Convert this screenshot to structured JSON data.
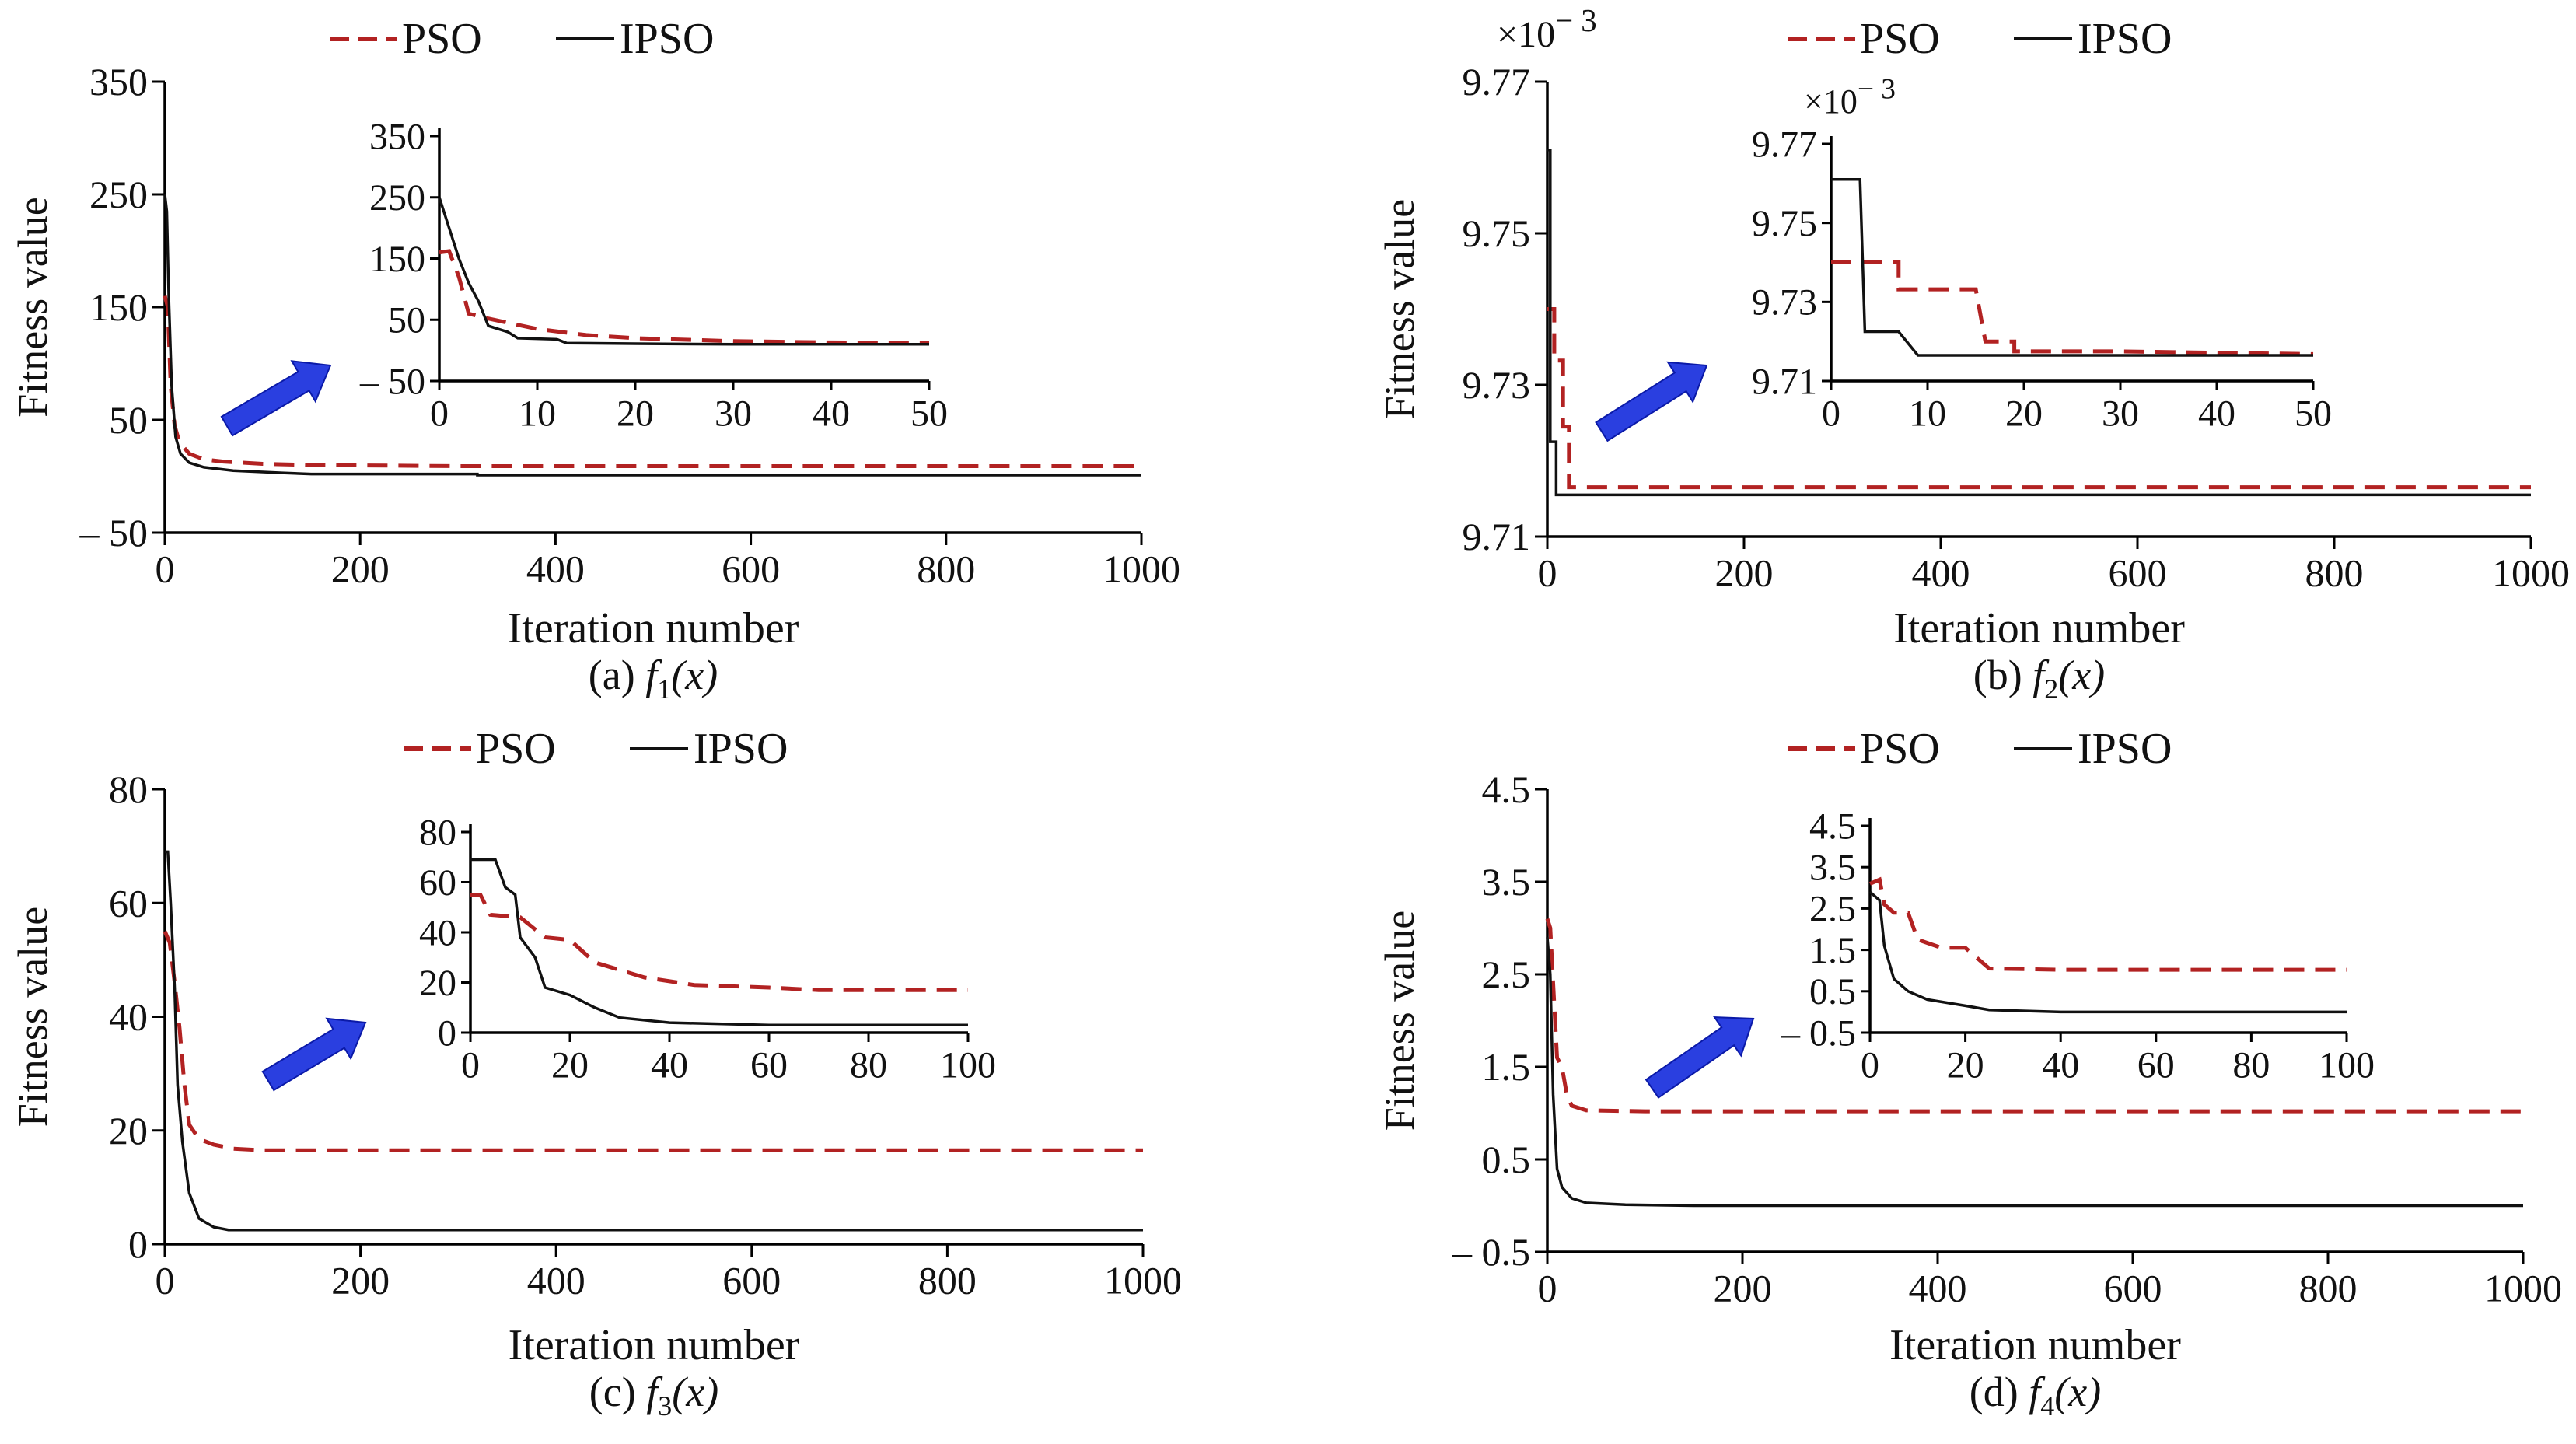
{
  "colors": {
    "pso": "#b22222",
    "ipso": "#111111",
    "arrow": "#2a3fe0",
    "axis": "#000000"
  },
  "legend": {
    "pso": "PSO",
    "ipso": "IPSO"
  },
  "chart_data": [
    {
      "id": "a",
      "type": "line",
      "caption_prefix": "(a) ",
      "caption_func": "f",
      "caption_sub": "1",
      "caption_arg": "(x)",
      "xlabel": "Iteration number",
      "ylabel": "Fitness value",
      "xlim": [
        0,
        1000
      ],
      "ylim": [
        -50,
        350
      ],
      "xticks": [
        0,
        200,
        400,
        600,
        800,
        1000
      ],
      "xtick_labels": [
        "0",
        "200",
        "400",
        "600",
        "800",
        "1000"
      ],
      "yticks": [
        -50,
        50,
        150,
        250,
        350
      ],
      "ytick_labels": [
        "– 50",
        "50",
        "150",
        "250",
        "350"
      ],
      "series": [
        {
          "name": "PSO",
          "style": "dashed",
          "points": [
            [
              0,
              160
            ],
            [
              3,
              150
            ],
            [
              6,
              80
            ],
            [
              10,
              45
            ],
            [
              15,
              30
            ],
            [
              25,
              20
            ],
            [
              40,
              15
            ],
            [
              60,
              13
            ],
            [
              100,
              11
            ],
            [
              150,
              10
            ],
            [
              300,
              9
            ],
            [
              500,
              9
            ],
            [
              1000,
              9
            ]
          ]
        },
        {
          "name": "IPSO",
          "style": "solid",
          "points": [
            [
              0,
              250
            ],
            [
              2,
              235
            ],
            [
              4,
              160
            ],
            [
              7,
              80
            ],
            [
              11,
              35
            ],
            [
              16,
              20
            ],
            [
              25,
              12
            ],
            [
              40,
              8
            ],
            [
              70,
              5
            ],
            [
              120,
              3
            ],
            [
              150,
              2
            ],
            [
              320,
              2
            ],
            [
              320,
              1
            ],
            [
              1000,
              1
            ]
          ]
        }
      ],
      "inset": {
        "xlim": [
          0,
          50
        ],
        "ylim": [
          -50,
          350
        ],
        "xticks": [
          0,
          10,
          20,
          30,
          40,
          50
        ],
        "xtick_labels": [
          "0",
          "10",
          "20",
          "30",
          "40",
          "50"
        ],
        "yticks": [
          -50,
          50,
          150,
          250,
          350
        ],
        "ytick_labels": [
          "– 50",
          "50",
          "150",
          "250",
          "350"
        ],
        "series": [
          {
            "name": "PSO",
            "points": [
              [
                0,
                160
              ],
              [
                1,
                162
              ],
              [
                2,
                120
              ],
              [
                3,
                60
              ],
              [
                5,
                52
              ],
              [
                7,
                45
              ],
              [
                10,
                35
              ],
              [
                15,
                25
              ],
              [
                20,
                20
              ],
              [
                30,
                15
              ],
              [
                40,
                13
              ],
              [
                50,
                12
              ]
            ]
          },
          {
            "name": "IPSO",
            "points": [
              [
                0,
                250
              ],
              [
                1,
                200
              ],
              [
                2,
                150
              ],
              [
                3,
                110
              ],
              [
                4,
                80
              ],
              [
                5,
                40
              ],
              [
                7,
                30
              ],
              [
                8,
                20
              ],
              [
                12,
                18
              ],
              [
                13,
                12
              ],
              [
                20,
                11
              ],
              [
                30,
                10
              ],
              [
                40,
                10
              ],
              [
                50,
                10
              ]
            ]
          }
        ]
      }
    },
    {
      "id": "b",
      "type": "line",
      "caption_prefix": "(b) ",
      "caption_func": "f",
      "caption_sub": "2",
      "caption_arg": "(x)",
      "xlabel": "Iteration number",
      "ylabel": "Fitness value",
      "y_multiplier": "×10",
      "y_exponent": "− 3",
      "xlim": [
        0,
        1000
      ],
      "ylim": [
        9.71,
        9.77
      ],
      "xticks": [
        0,
        200,
        400,
        600,
        800,
        1000
      ],
      "xtick_labels": [
        "0",
        "200",
        "400",
        "600",
        "800",
        "1000"
      ],
      "yticks": [
        9.71,
        9.73,
        9.75,
        9.77
      ],
      "ytick_labels": [
        "9.71",
        "9.73",
        "9.75",
        "9.77"
      ],
      "series": [
        {
          "name": "PSO",
          "style": "dashed",
          "points": [
            [
              0,
              9.74
            ],
            [
              7,
              9.74
            ],
            [
              7,
              9.7332
            ],
            [
              16,
              9.7332
            ],
            [
              16,
              9.7245
            ],
            [
              22,
              9.7245
            ],
            [
              22,
              9.7165
            ],
            [
              1000,
              9.7165
            ]
          ]
        },
        {
          "name": "IPSO",
          "style": "solid",
          "points": [
            [
              0,
              9.761
            ],
            [
              3,
              9.761
            ],
            [
              3,
              9.7225
            ],
            [
              9,
              9.7225
            ],
            [
              9,
              9.7155
            ],
            [
              1000,
              9.7155
            ]
          ]
        }
      ],
      "inset": {
        "xlim": [
          0,
          50
        ],
        "ylim": [
          9.71,
          9.77
        ],
        "y_multiplier": "×10",
        "y_exponent": "− 3",
        "xticks": [
          0,
          10,
          20,
          30,
          40,
          50
        ],
        "xtick_labels": [
          "0",
          "10",
          "20",
          "30",
          "40",
          "50"
        ],
        "yticks": [
          9.71,
          9.73,
          9.75,
          9.77
        ],
        "ytick_labels": [
          "9.71",
          "9.73",
          "9.75",
          "9.77"
        ],
        "series": [
          {
            "name": "PSO",
            "points": [
              [
                0,
                9.74
              ],
              [
                7,
                9.74
              ],
              [
                7,
                9.7332
              ],
              [
                15,
                9.7332
              ],
              [
                16,
                9.72
              ],
              [
                19,
                9.72
              ],
              [
                19,
                9.7175
              ],
              [
                30,
                9.7175
              ],
              [
                50,
                9.7168
              ]
            ]
          },
          {
            "name": "IPSO",
            "points": [
              [
                0,
                9.761
              ],
              [
                3,
                9.761
              ],
              [
                3.5,
                9.7225
              ],
              [
                7,
                9.7225
              ],
              [
                9,
                9.7165
              ],
              [
                30,
                9.7165
              ],
              [
                50,
                9.7165
              ]
            ]
          }
        ]
      }
    },
    {
      "id": "c",
      "type": "line",
      "caption_prefix": "(c) ",
      "caption_func": "f",
      "caption_sub": "3",
      "caption_arg": "(x)",
      "xlabel": "Iteration number",
      "ylabel": "Fitness value",
      "xlim": [
        0,
        1000
      ],
      "ylim": [
        0,
        80
      ],
      "xticks": [
        0,
        200,
        400,
        600,
        800,
        1000
      ],
      "xtick_labels": [
        "0",
        "200",
        "400",
        "600",
        "800",
        "1000"
      ],
      "yticks": [
        0,
        20,
        40,
        60,
        80
      ],
      "ytick_labels": [
        "0",
        "20",
        "40",
        "60",
        "80"
      ],
      "series": [
        {
          "name": "PSO",
          "style": "dashed",
          "points": [
            [
              0,
              55
            ],
            [
              5,
              53
            ],
            [
              10,
              46
            ],
            [
              15,
              38
            ],
            [
              20,
              28
            ],
            [
              25,
              21
            ],
            [
              35,
              18.5
            ],
            [
              50,
              17.5
            ],
            [
              70,
              16.8
            ],
            [
              100,
              16.5
            ],
            [
              1000,
              16.5
            ]
          ]
        },
        {
          "name": "IPSO",
          "style": "solid",
          "points": [
            [
              0,
              69
            ],
            [
              3,
              69
            ],
            [
              6,
              60
            ],
            [
              10,
              45
            ],
            [
              13,
              28
            ],
            [
              18,
              18
            ],
            [
              25,
              9
            ],
            [
              35,
              4.5
            ],
            [
              50,
              3
            ],
            [
              65,
              2.5
            ],
            [
              1000,
              2.5
            ]
          ]
        }
      ],
      "inset": {
        "xlim": [
          0,
          100
        ],
        "ylim": [
          0,
          80
        ],
        "xticks": [
          0,
          20,
          40,
          60,
          80,
          100
        ],
        "xtick_labels": [
          "0",
          "20",
          "40",
          "60",
          "80",
          "100"
        ],
        "yticks": [
          0,
          20,
          40,
          60,
          80
        ],
        "ytick_labels": [
          "0",
          "20",
          "40",
          "60",
          "80"
        ],
        "series": [
          {
            "name": "PSO",
            "points": [
              [
                0,
                55
              ],
              [
                2,
                55
              ],
              [
                4,
                47
              ],
              [
                10,
                46
              ],
              [
                15,
                38
              ],
              [
                20,
                37
              ],
              [
                25,
                28
              ],
              [
                35,
                22
              ],
              [
                45,
                19
              ],
              [
                60,
                18
              ],
              [
                70,
                17
              ],
              [
                100,
                17
              ]
            ]
          },
          {
            "name": "IPSO",
            "points": [
              [
                0,
                69
              ],
              [
                5,
                69
              ],
              [
                7,
                58
              ],
              [
                9,
                55
              ],
              [
                10,
                38
              ],
              [
                13,
                30
              ],
              [
                15,
                18
              ],
              [
                20,
                15
              ],
              [
                25,
                10
              ],
              [
                30,
                6
              ],
              [
                40,
                4
              ],
              [
                60,
                3
              ],
              [
                100,
                3
              ]
            ]
          }
        ]
      }
    },
    {
      "id": "d",
      "type": "line",
      "caption_prefix": "(d) ",
      "caption_func": "f",
      "caption_sub": "4",
      "caption_arg": "(x)",
      "xlabel": "Iteration number",
      "ylabel": "Fitness value",
      "xlim": [
        0,
        1000
      ],
      "ylim": [
        -0.5,
        4.5
      ],
      "xticks": [
        0,
        200,
        400,
        600,
        800,
        1000
      ],
      "xtick_labels": [
        "0",
        "200",
        "400",
        "600",
        "800",
        "1000"
      ],
      "yticks": [
        -0.5,
        0.5,
        1.5,
        2.5,
        3.5,
        4.5
      ],
      "ytick_labels": [
        "– 0.5",
        "0.5",
        "1.5",
        "2.5",
        "3.5",
        "4.5"
      ],
      "series": [
        {
          "name": "PSO",
          "style": "dashed",
          "points": [
            [
              0,
              3.1
            ],
            [
              3,
              3.0
            ],
            [
              6,
              2.4
            ],
            [
              10,
              1.6
            ],
            [
              15,
              1.5
            ],
            [
              20,
              1.2
            ],
            [
              25,
              1.08
            ],
            [
              40,
              1.03
            ],
            [
              100,
              1.02
            ],
            [
              1000,
              1.02
            ]
          ]
        },
        {
          "name": "IPSO",
          "style": "solid",
          "points": [
            [
              0,
              2.9
            ],
            [
              3,
              2.5
            ],
            [
              6,
              1.2
            ],
            [
              10,
              0.4
            ],
            [
              15,
              0.2
            ],
            [
              25,
              0.08
            ],
            [
              40,
              0.03
            ],
            [
              80,
              0.01
            ],
            [
              150,
              0
            ],
            [
              1000,
              0
            ]
          ]
        }
      ],
      "inset": {
        "xlim": [
          0,
          100
        ],
        "ylim": [
          -0.5,
          4.5
        ],
        "xticks": [
          0,
          20,
          40,
          60,
          80,
          100
        ],
        "xtick_labels": [
          "0",
          "20",
          "40",
          "60",
          "80",
          "100"
        ],
        "yticks": [
          -0.5,
          0.5,
          1.5,
          2.5,
          3.5,
          4.5
        ],
        "ytick_labels": [
          "– 0.5",
          "0.5",
          "1.5",
          "2.5",
          "3.5",
          "4.5"
        ],
        "series": [
          {
            "name": "PSO",
            "points": [
              [
                0,
                3.1
              ],
              [
                2,
                3.2
              ],
              [
                3,
                2.6
              ],
              [
                5,
                2.4
              ],
              [
                8,
                2.4
              ],
              [
                10,
                1.75
              ],
              [
                15,
                1.55
              ],
              [
                20,
                1.55
              ],
              [
                25,
                1.05
              ],
              [
                40,
                1.02
              ],
              [
                100,
                1.02
              ]
            ]
          },
          {
            "name": "IPSO",
            "points": [
              [
                0,
                2.9
              ],
              [
                2,
                2.7
              ],
              [
                3,
                1.6
              ],
              [
                5,
                0.8
              ],
              [
                8,
                0.5
              ],
              [
                12,
                0.3
              ],
              [
                20,
                0.15
              ],
              [
                25,
                0.05
              ],
              [
                40,
                0
              ],
              [
                100,
                0
              ]
            ]
          }
        ]
      }
    }
  ]
}
